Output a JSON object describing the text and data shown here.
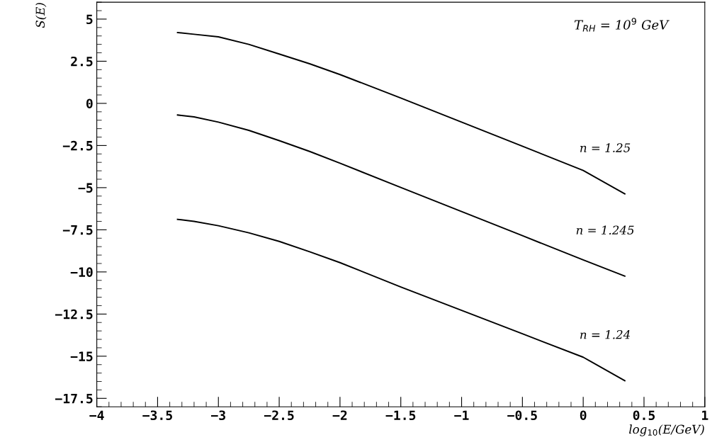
{
  "chart_data": {
    "type": "line",
    "xlabel": "log$_{10}$(E/GeV)",
    "ylabel": "S(E)",
    "x": [
      -3.336,
      -3.2,
      -3,
      -2.75,
      -2.5,
      -2.25,
      -2,
      -1.5,
      -1,
      -0.5,
      0,
      0.342
    ],
    "series": [
      {
        "name": "n = 1.25",
        "color": "#000000",
        "values": [
          4.2,
          4.1,
          3.95,
          3.5,
          2.93,
          2.35,
          1.71,
          0.32,
          -1.11,
          -2.54,
          -3.98,
          -5.37
        ]
      },
      {
        "name": "n = 1.245",
        "color": "#000000",
        "values": [
          -0.69,
          -0.8,
          -1.11,
          -1.6,
          -2.21,
          -2.85,
          -3.55,
          -4.99,
          -6.42,
          -7.85,
          -9.29,
          -10.25
        ]
      },
      {
        "name": "n = 1.24",
        "color": "#000000",
        "values": [
          -6.88,
          -7.0,
          -7.26,
          -7.68,
          -8.19,
          -8.8,
          -9.45,
          -10.89,
          -12.28,
          -13.67,
          -15.06,
          -16.45
        ]
      }
    ],
    "annotations": [
      "T$_{RH}$ = 10$^{9}$ GeV"
    ],
    "xlim": [
      -4,
      1
    ],
    "ylim": [
      -18,
      6
    ],
    "xticks": [
      -4,
      -3.5,
      -3,
      -2.5,
      -2,
      -1.5,
      -1,
      -0.5,
      0,
      0.5,
      1
    ],
    "yticks": [
      5,
      2.5,
      0,
      -2.5,
      -5,
      -7.5,
      -10,
      -12.5,
      -15,
      -17.5
    ],
    "grid": false,
    "legend": false,
    "marker": "none",
    "line_style": "solid"
  }
}
